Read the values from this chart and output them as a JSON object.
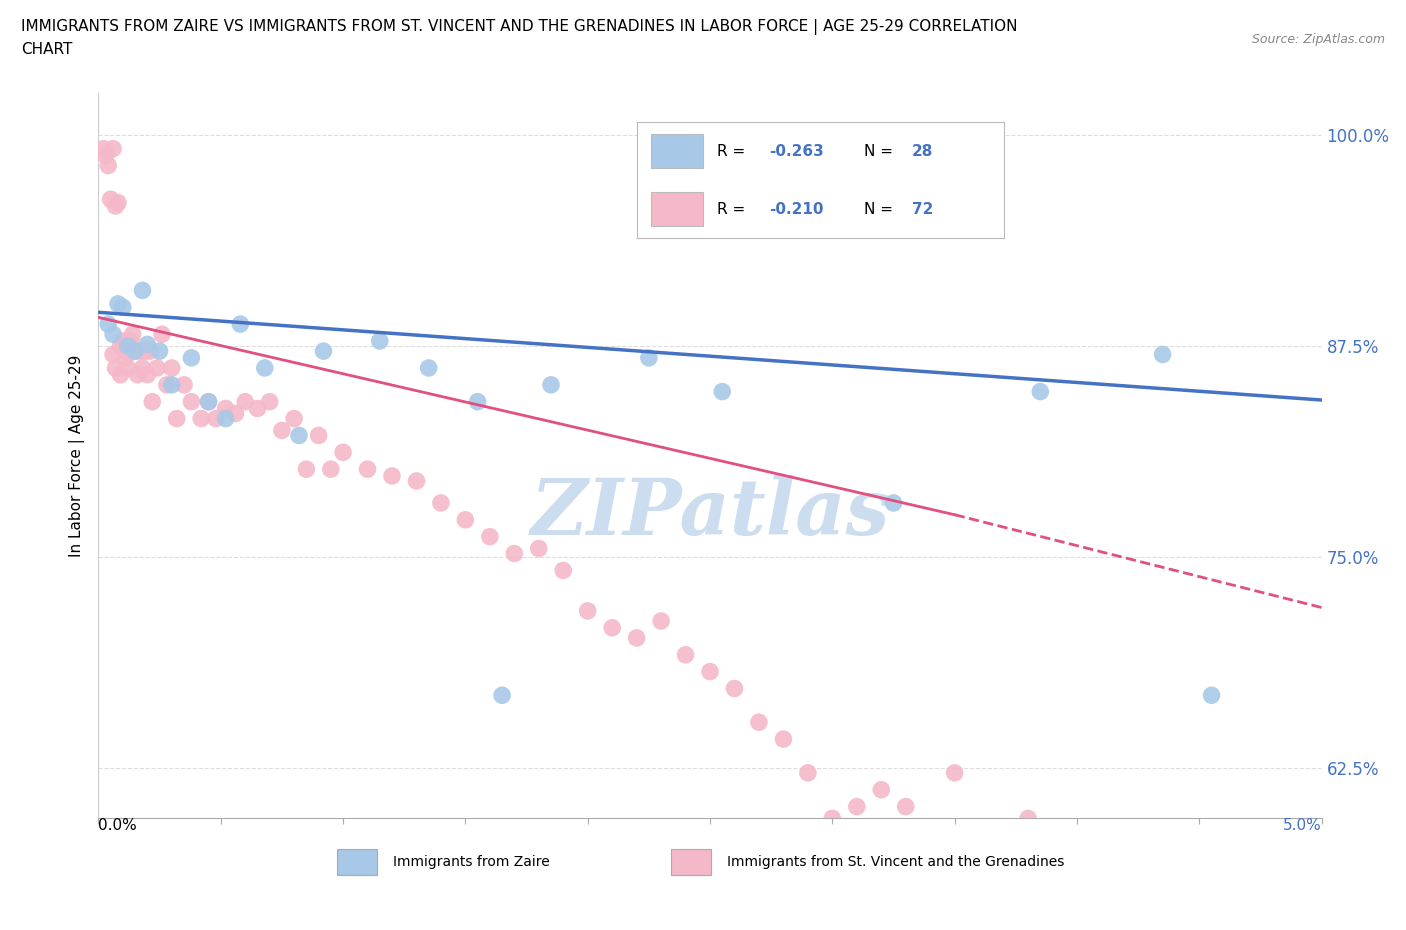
{
  "title_line1": "IMMIGRANTS FROM ZAIRE VS IMMIGRANTS FROM ST. VINCENT AND THE GRENADINES IN LABOR FORCE | AGE 25-29 CORRELATION",
  "title_line2": "CHART",
  "source": "Source: ZipAtlas.com",
  "ylabel": "In Labor Force | Age 25-29",
  "xlim": [
    0.0,
    5.0
  ],
  "ylim": [
    0.595,
    1.025
  ],
  "yticks": [
    0.625,
    0.75,
    0.875,
    1.0
  ],
  "ytick_labels": [
    "62.5%",
    "75.0%",
    "87.5%",
    "100.0%"
  ],
  "color_zaire": "#a8c8e8",
  "color_stv": "#f5b8c8",
  "line_color_zaire": "#4472c4",
  "line_color_stv": "#e05080",
  "legend_r_zaire": "R = -0.263",
  "legend_n_zaire": "N = 28",
  "legend_r_stv": "R = -0.210",
  "legend_n_stv": "N = 72",
  "zaire_x": [
    0.04,
    0.06,
    0.08,
    0.1,
    0.12,
    0.15,
    0.18,
    0.2,
    0.25,
    0.3,
    0.38,
    0.45,
    0.52,
    0.58,
    0.68,
    0.82,
    0.92,
    1.15,
    1.35,
    1.55,
    1.65,
    1.85,
    2.25,
    2.55,
    3.25,
    3.85,
    4.35,
    4.55
  ],
  "zaire_y": [
    0.888,
    0.882,
    0.9,
    0.898,
    0.875,
    0.872,
    0.908,
    0.876,
    0.872,
    0.852,
    0.868,
    0.842,
    0.832,
    0.888,
    0.862,
    0.822,
    0.872,
    0.878,
    0.862,
    0.842,
    0.668,
    0.852,
    0.868,
    0.848,
    0.782,
    0.848,
    0.87,
    0.668
  ],
  "stv_x": [
    0.02,
    0.03,
    0.04,
    0.05,
    0.06,
    0.07,
    0.08,
    0.09,
    0.1,
    0.11,
    0.12,
    0.13,
    0.14,
    0.15,
    0.16,
    0.17,
    0.18,
    0.19,
    0.2,
    0.21,
    0.22,
    0.24,
    0.26,
    0.28,
    0.3,
    0.32,
    0.35,
    0.38,
    0.42,
    0.45,
    0.48,
    0.52,
    0.56,
    0.6,
    0.65,
    0.7,
    0.75,
    0.8,
    0.85,
    0.9,
    0.95,
    1.0,
    1.1,
    1.2,
    1.3,
    1.4,
    1.5,
    1.6,
    1.7,
    1.8,
    1.9,
    2.0,
    2.1,
    2.2,
    2.3,
    2.4,
    2.5,
    2.6,
    2.7,
    2.8,
    2.9,
    3.0,
    3.1,
    3.2,
    3.3,
    3.5,
    3.8,
    0.06,
    0.07,
    0.09,
    0.11,
    0.13
  ],
  "stv_y": [
    0.992,
    0.988,
    0.982,
    0.962,
    0.992,
    0.958,
    0.96,
    0.875,
    0.878,
    0.872,
    0.862,
    0.872,
    0.882,
    0.872,
    0.858,
    0.872,
    0.862,
    0.872,
    0.858,
    0.872,
    0.842,
    0.862,
    0.882,
    0.852,
    0.862,
    0.832,
    0.852,
    0.842,
    0.832,
    0.842,
    0.832,
    0.838,
    0.835,
    0.842,
    0.838,
    0.842,
    0.825,
    0.832,
    0.802,
    0.822,
    0.802,
    0.812,
    0.802,
    0.798,
    0.795,
    0.782,
    0.772,
    0.762,
    0.752,
    0.755,
    0.742,
    0.718,
    0.708,
    0.702,
    0.712,
    0.692,
    0.682,
    0.672,
    0.652,
    0.642,
    0.622,
    0.595,
    0.602,
    0.612,
    0.602,
    0.622,
    0.595,
    0.87,
    0.862,
    0.858,
    0.868,
    0.878
  ],
  "stv_line_solid_end": 3.5,
  "watermark": "ZIPatlas",
  "watermark_color": "#ccddf0",
  "background_color": "#ffffff",
  "grid_color": "#dddddd",
  "num_xticks": 10
}
